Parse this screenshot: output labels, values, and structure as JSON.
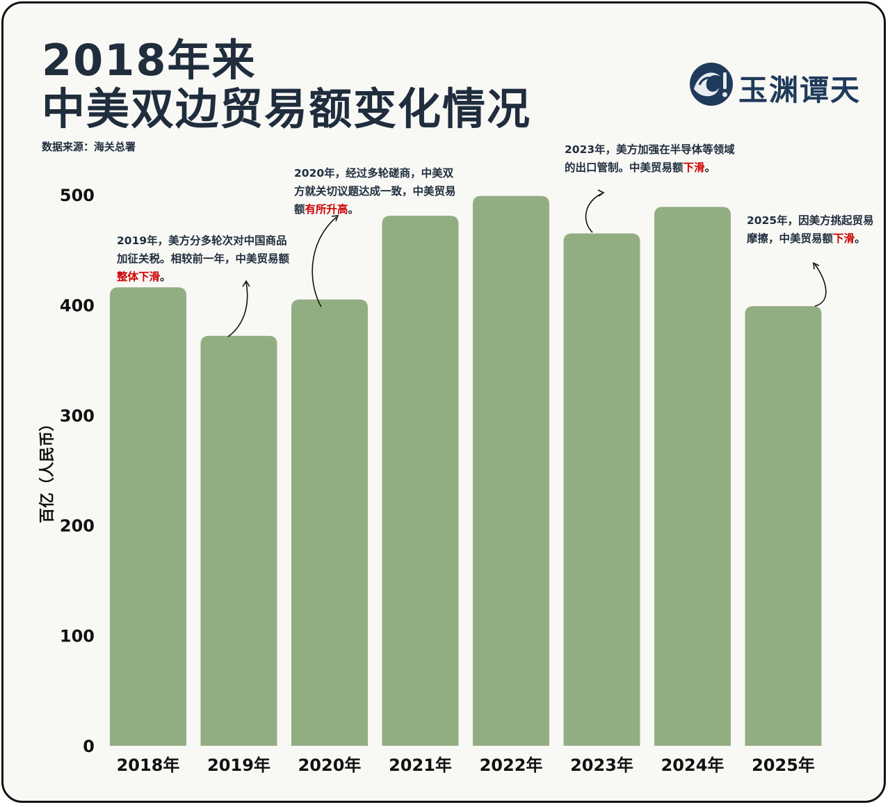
{
  "title_line1": "2018年来",
  "title_line2": "中美双边贸易额变化情况",
  "source": "数据来源：海关总署",
  "logo": {
    "text": "玉渊谭天",
    "icon": "wave-logo-icon",
    "color": "#1f3a5a"
  },
  "colors": {
    "bar": "#93ad82",
    "highlight": "#cc0000",
    "text": "#1f2d3d"
  },
  "chart_data": {
    "type": "bar",
    "categories": [
      "2018年",
      "2019年",
      "2020年",
      "2021年",
      "2022年",
      "2023年",
      "2024年",
      "2025年"
    ],
    "values": [
      416,
      372,
      405,
      481,
      499,
      465,
      489,
      399
    ],
    "ylabel": "百亿（人民币）",
    "ylim": [
      0,
      500
    ],
    "yticks": [
      0,
      100,
      200,
      300,
      400,
      500
    ],
    "grid": false,
    "legend": "none"
  },
  "annotations": [
    {
      "pre": "2019年，美方分多轮次对中国商品加征关税。相较前一年，中美贸易额",
      "hl": "整体下滑",
      "post": "。"
    },
    {
      "pre": "2020年，经过多轮磋商，中美双方就关切议题达成一致，中美贸易额",
      "hl": "有所升高",
      "post": "。"
    },
    {
      "pre": "2023年，美方加强在半导体等领域的出口管制。中美贸易额",
      "hl": "下滑",
      "post": "。"
    },
    {
      "pre": "2025年，因美方挑起贸易摩擦，中美贸易额",
      "hl": "下滑",
      "post": "。"
    }
  ]
}
